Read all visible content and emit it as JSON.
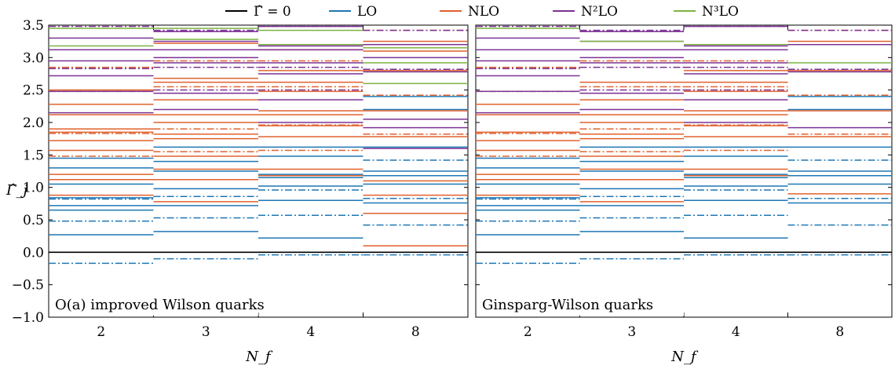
{
  "legend": [
    {
      "label": "Γ̂ = 0",
      "color": "#000000"
    },
    {
      "label": "LO",
      "color": "#1f77b4"
    },
    {
      "label": "NLO",
      "color": "#e1622f"
    },
    {
      "label": "N²LO",
      "color": "#7b3294"
    },
    {
      "label": "N³LO",
      "color": "#7cb342"
    }
  ],
  "ylabel": "Γ̂_j",
  "xlabel": "N_f",
  "chart_data": [
    {
      "type": "line",
      "title": "O(a) improved Wilson quarks",
      "categories": [
        "2",
        "3",
        "4",
        "8"
      ],
      "ylim": [
        -1.0,
        3.5
      ],
      "yticks": [
        "−1.0",
        "−0.5",
        "0.0",
        "0.5",
        "1.0",
        "1.5",
        "2.0",
        "2.5",
        "3.0",
        "3.5"
      ],
      "series": [
        {
          "order": "zero",
          "style": "solid",
          "values": [
            [
              0
            ],
            [
              0
            ],
            [
              0
            ],
            [
              0
            ]
          ]
        },
        {
          "order": "LO",
          "style": "solid",
          "values": [
            [
              0.27,
              0.65,
              0.72,
              0.84,
              1.05,
              1.3,
              1.45
            ],
            [
              0.32,
              0.72,
              0.98,
              1.12,
              1.25,
              1.4,
              1.62
            ],
            [
              0.22,
              0.8,
              1.02,
              1.15,
              1.2,
              1.48,
              1.62
            ],
            [
              0.76,
              1.05,
              1.18,
              1.25,
              1.62,
              2.2,
              2.4
            ]
          ]
        },
        {
          "order": "LO",
          "style": "dashdot",
          "values": [
            [
              -0.17,
              0.48,
              0.82
            ],
            [
              -0.1,
              0.53,
              0.86
            ],
            [
              -0.04,
              0.57,
              0.96
            ],
            [
              -0.04,
              0.42,
              0.83,
              1.42
            ]
          ]
        },
        {
          "order": "NLO",
          "style": "solid",
          "values": [
            [
              0.88,
              1.12,
              1.2,
              1.57,
              1.72,
              1.85,
              1.9,
              2.12,
              2.28,
              2.5
            ],
            [
              0.78,
              1.12,
              1.28,
              1.48,
              1.75,
              1.82,
              2.0,
              2.12,
              2.35,
              2.62,
              2.68,
              3.22
            ],
            [
              1.18,
              1.28,
              1.78,
              1.95,
              2.12,
              2.18,
              2.48,
              2.62,
              2.8,
              3.12
            ],
            [
              0.1,
              0.6,
              0.88,
              1.1,
              1.78,
              2.18,
              2.8,
              3.1,
              3.25
            ]
          ]
        },
        {
          "order": "NLO",
          "style": "dashdot",
          "values": [
            [
              1.48,
              1.83,
              2.48,
              2.85
            ],
            [
              1.55,
              1.9,
              2.55,
              2.95
            ],
            [
              1.57,
              1.96,
              2.55,
              2.95
            ],
            [
              1.82,
              2.42,
              2.82,
              3.42
            ]
          ]
        },
        {
          "order": "N2LO",
          "style": "solid",
          "values": [
            [
              2.15,
              2.48,
              2.72,
              2.95,
              3.12,
              3.3
            ],
            [
              2.2,
              2.45,
              2.92,
              3.0,
              3.12,
              3.25,
              3.4
            ],
            [
              2.0,
              2.35,
              2.75,
              2.92,
              3.12,
              3.18,
              3.48
            ],
            [
              1.6,
              1.92,
              2.05,
              2.78,
              3.0,
              3.2
            ]
          ]
        },
        {
          "order": "N2LO",
          "style": "dashdot",
          "values": [
            [
              2.83,
              3.48
            ],
            [
              2.5,
              2.85,
              3.42
            ],
            [
              2.5,
              2.85,
              3.48
            ],
            [
              2.82,
              3.42
            ]
          ]
        },
        {
          "order": "N3LO",
          "style": "solid",
          "values": [
            [
              3.18,
              3.45
            ],
            [
              3.28,
              3.45
            ],
            [
              3.2,
              3.42
            ],
            [
              2.6,
              2.92,
              3.15
            ]
          ]
        }
      ]
    },
    {
      "type": "line",
      "title": "Ginsparg-Wilson quarks",
      "categories": [
        "2",
        "3",
        "4",
        "8"
      ],
      "ylim": [
        -1.0,
        3.5
      ],
      "yticks": [],
      "series": [
        {
          "order": "zero",
          "style": "solid",
          "values": [
            [
              0
            ],
            [
              0
            ],
            [
              0
            ],
            [
              0
            ]
          ]
        },
        {
          "order": "LO",
          "style": "solid",
          "values": [
            [
              0.27,
              0.65,
              0.72,
              0.84,
              1.05,
              1.3,
              1.45
            ],
            [
              0.32,
              0.72,
              0.98,
              1.12,
              1.25,
              1.4,
              1.62
            ],
            [
              0.22,
              0.8,
              1.02,
              1.15,
              1.2,
              1.48,
              1.62
            ],
            [
              0.76,
              1.05,
              1.18,
              1.25,
              1.62,
              2.2,
              2.4
            ]
          ]
        },
        {
          "order": "LO",
          "style": "dashdot",
          "values": [
            [
              -0.17,
              0.48,
              0.82
            ],
            [
              -0.1,
              0.53,
              0.86
            ],
            [
              -0.04,
              0.57,
              0.96
            ],
            [
              -0.04,
              0.42,
              0.83,
              1.42
            ]
          ]
        },
        {
          "order": "NLO",
          "style": "solid",
          "values": [
            [
              0.88,
              1.12,
              1.2,
              1.57,
              1.72,
              1.85,
              2.12,
              2.28
            ],
            [
              0.78,
              1.12,
              1.28,
              1.48,
              1.75,
              1.82,
              2.0,
              2.12,
              2.35,
              2.62
            ],
            [
              1.18,
              1.28,
              1.78,
              1.95,
              2.12,
              2.18,
              2.48,
              2.62,
              2.8
            ],
            [
              0.9,
              1.78,
              2.18,
              2.8,
              3.25
            ]
          ]
        },
        {
          "order": "NLO",
          "style": "dashdot",
          "values": [
            [
              1.48,
              1.83,
              2.48,
              2.85
            ],
            [
              1.55,
              1.9,
              2.55,
              2.95
            ],
            [
              1.57,
              1.96,
              2.55,
              2.95
            ],
            [
              1.82,
              2.42,
              2.82,
              3.42
            ]
          ]
        },
        {
          "order": "N2LO",
          "style": "solid",
          "values": [
            [
              2.15,
              2.48,
              2.72,
              2.95,
              3.12,
              3.3
            ],
            [
              2.2,
              2.45,
              2.92,
              3.0,
              3.12,
              3.25,
              3.4
            ],
            [
              2.0,
              2.35,
              2.75,
              2.92,
              3.12,
              3.18,
              3.48
            ],
            [
              1.92,
              2.78,
              3.2
            ]
          ]
        },
        {
          "order": "N2LO",
          "style": "dashdot",
          "values": [
            [
              2.83,
              3.48
            ],
            [
              2.5,
              2.85,
              3.42
            ],
            [
              2.5,
              2.85,
              3.48
            ],
            [
              2.82,
              3.42
            ]
          ]
        },
        {
          "order": "N3LO",
          "style": "solid",
          "values": [
            [
              3.45
            ],
            [
              3.25
            ],
            [
              3.2
            ],
            [
              2.92
            ]
          ]
        }
      ]
    }
  ]
}
